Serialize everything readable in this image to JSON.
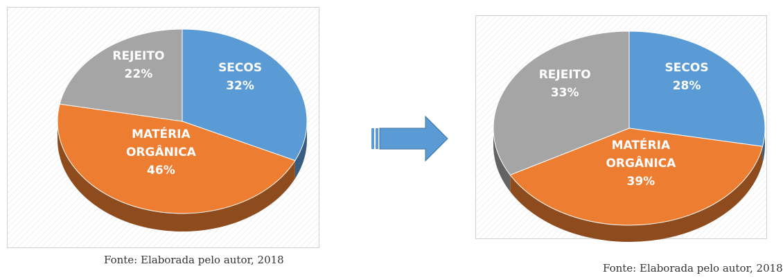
{
  "chart_data": [
    {
      "type": "pie",
      "categories": [
        "SECOS",
        "MATÉRIA ORGÂNICA",
        "REJEITO"
      ],
      "values": [
        32,
        46,
        22
      ],
      "value_labels": [
        "32%",
        "46%",
        "22%"
      ],
      "colors": [
        "#5b9bd5",
        "#ed7d31",
        "#a5a5a5"
      ],
      "source": "Fonte: Elaborada pelo autor, 2018"
    },
    {
      "type": "pie",
      "categories": [
        "SECOS",
        "MATÉRIA ORGÂNICA",
        "REJEITO"
      ],
      "values": [
        28,
        39,
        33
      ],
      "value_labels": [
        "28%",
        "39%",
        "33%"
      ],
      "colors": [
        "#5b9bd5",
        "#ed7d31",
        "#a5a5a5"
      ],
      "source": "Fonte: Elaborada pelo autor, 2018"
    }
  ]
}
